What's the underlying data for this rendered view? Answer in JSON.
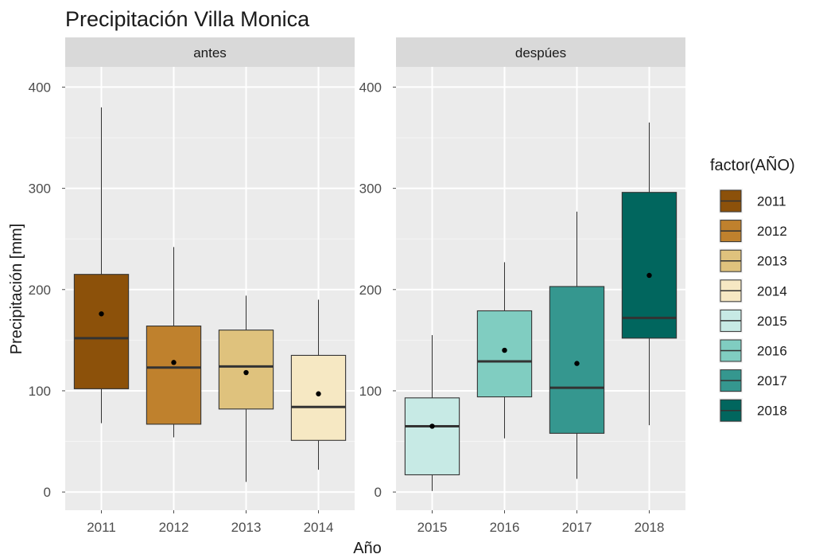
{
  "chart_data": {
    "type": "boxplot",
    "title": "Precipitación Villa Monica",
    "xlabel": "Año",
    "ylabel": "Precipitación [mm]",
    "ylim": [
      -18,
      420
    ],
    "y_ticks": [
      0,
      100,
      200,
      300,
      400
    ],
    "grid": true,
    "legend": {
      "title": "factor(AÑO)",
      "position": "right",
      "entries": [
        {
          "label": "2011",
          "color": "#8c510a"
        },
        {
          "label": "2012",
          "color": "#bf812d"
        },
        {
          "label": "2013",
          "color": "#dfc27d"
        },
        {
          "label": "2014",
          "color": "#f6e8c3"
        },
        {
          "label": "2015",
          "color": "#c7eae5"
        },
        {
          "label": "2016",
          "color": "#80cdc1"
        },
        {
          "label": "2017",
          "color": "#35978f"
        },
        {
          "label": "2018",
          "color": "#01665e"
        }
      ]
    },
    "panels": [
      {
        "label": "antes",
        "categories": [
          "2011",
          "2012",
          "2013",
          "2014"
        ],
        "boxes": [
          {
            "category": "2011",
            "color": "#8c510a",
            "min": 68,
            "q1": 102,
            "median": 152,
            "q3": 215,
            "max": 380,
            "mean": 176
          },
          {
            "category": "2012",
            "color": "#bf812d",
            "min": 54,
            "q1": 67,
            "median": 123,
            "q3": 164,
            "max": 242,
            "mean": 128
          },
          {
            "category": "2013",
            "color": "#dfc27d",
            "min": 10,
            "q1": 82,
            "median": 124,
            "q3": 160,
            "max": 194,
            "mean": 118
          },
          {
            "category": "2014",
            "color": "#f6e8c3",
            "min": 22,
            "q1": 51,
            "median": 84,
            "q3": 135,
            "max": 190,
            "mean": 97
          }
        ]
      },
      {
        "label": "despúes",
        "categories": [
          "2015",
          "2016",
          "2017",
          "2018"
        ],
        "boxes": [
          {
            "category": "2015",
            "color": "#c7eae5",
            "min": 1,
            "q1": 17,
            "median": 65,
            "q3": 93,
            "max": 155,
            "mean": 65
          },
          {
            "category": "2016",
            "color": "#80cdc1",
            "min": 53,
            "q1": 94,
            "median": 129,
            "q3": 179,
            "max": 227,
            "mean": 140
          },
          {
            "category": "2017",
            "color": "#35978f",
            "min": 13,
            "q1": 58,
            "median": 103,
            "q3": 203,
            "max": 277,
            "mean": 127
          },
          {
            "category": "2018",
            "color": "#01665e",
            "min": 66,
            "q1": 152,
            "median": 172,
            "q3": 296,
            "max": 365,
            "mean": 214
          }
        ]
      }
    ]
  }
}
